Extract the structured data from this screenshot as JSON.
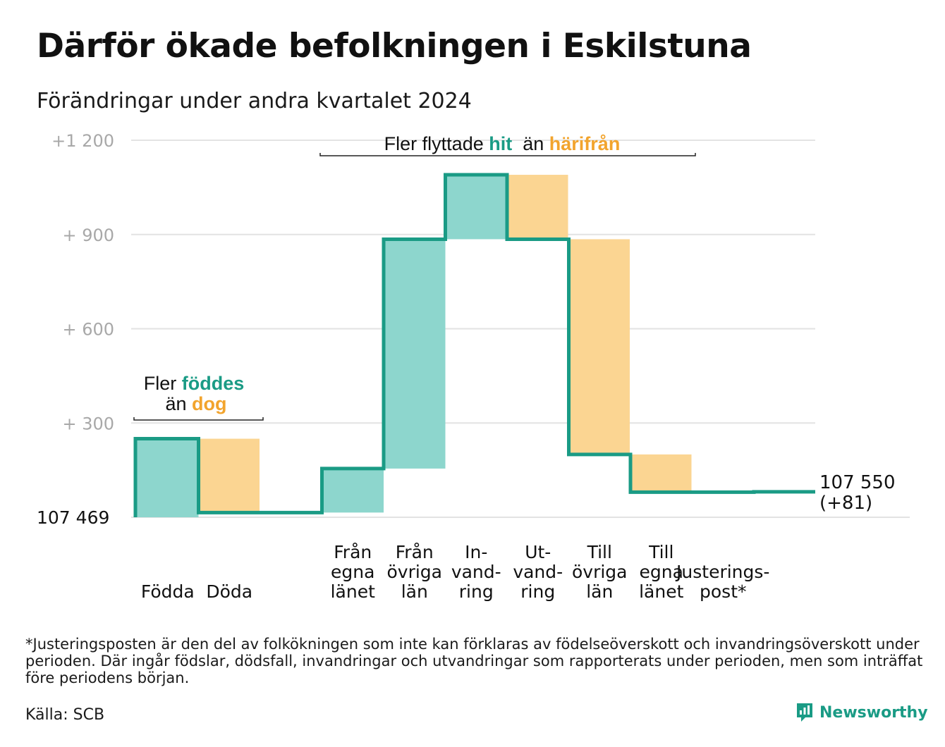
{
  "title": "Därför ökade befolkningen i Eskilstuna",
  "subtitle": "Förändringar under andra kvartalet 2024",
  "colors": {
    "in_fill": "#8dd6cd",
    "out_fill": "#fbd592",
    "line": "#1a9b85",
    "accent_out": "#f2a42d",
    "grid": "#e3e3e3",
    "tick": "#a8a8a8"
  },
  "chart_data": {
    "type": "waterfall",
    "start_value": 107469,
    "end_value": 107550,
    "start_label": "107  469",
    "end_label": "107 550",
    "end_change": "(+81)",
    "y_ticks": [
      {
        "value": 300,
        "label": "+  300"
      },
      {
        "value": 600,
        "label": "+  600"
      },
      {
        "value": 900,
        "label": "+  900"
      },
      {
        "value": 1200,
        "label": "+1  200"
      }
    ],
    "ylim": [
      0,
      1200
    ],
    "steps": [
      {
        "label": [
          "Födda"
        ],
        "delta": 250,
        "direction": "in"
      },
      {
        "label": [
          "Döda"
        ],
        "delta": -235,
        "direction": "out"
      },
      {
        "label": [
          ""
        ],
        "delta": 0,
        "direction": "none"
      },
      {
        "label": [
          "Från",
          "egna",
          "länet"
        ],
        "delta": 140,
        "direction": "in"
      },
      {
        "label": [
          "Från",
          "övriga",
          "län"
        ],
        "delta": 730,
        "direction": "in"
      },
      {
        "label": [
          "In-",
          "vand-",
          "ring"
        ],
        "delta": 205,
        "direction": "in"
      },
      {
        "label": [
          "Ut-",
          "vand-",
          "ring"
        ],
        "delta": -205,
        "direction": "out"
      },
      {
        "label": [
          "Till",
          "övriga",
          "län"
        ],
        "delta": -685,
        "direction": "out"
      },
      {
        "label": [
          "Till",
          "egna",
          "länet"
        ],
        "delta": -120,
        "direction": "out"
      },
      {
        "label": [
          "Justerings-",
          "post*"
        ],
        "delta": 0,
        "direction": "none"
      }
    ],
    "annotations": [
      {
        "parts": [
          {
            "text": "Fler ",
            "role": "plain"
          },
          {
            "text": "föddes",
            "role": "in"
          }
        ]
      },
      {
        "parts": [
          {
            "text": "än ",
            "role": "plain"
          },
          {
            "text": "dog",
            "role": "out"
          }
        ]
      },
      {
        "parts": [
          {
            "text": "Fler flyttade ",
            "role": "plain"
          },
          {
            "text": "hit",
            "role": "in"
          },
          {
            "text": "  än ",
            "role": "plain"
          },
          {
            "text": "härifrån",
            "role": "out"
          }
        ]
      }
    ]
  },
  "footnote": "*Justeringsposten är den del av folkökningen som inte kan förklaras av födelseöverskott och invandringsöverskott under perioden. Där ingår födslar, dödsfall, invandringar och utvandringar som rapporterats under perioden, men som inträffat före periodens början.",
  "source": "Källa: SCB",
  "brand": {
    "name": "Newsworthy",
    "icon": "newsworthy-logo-icon"
  }
}
